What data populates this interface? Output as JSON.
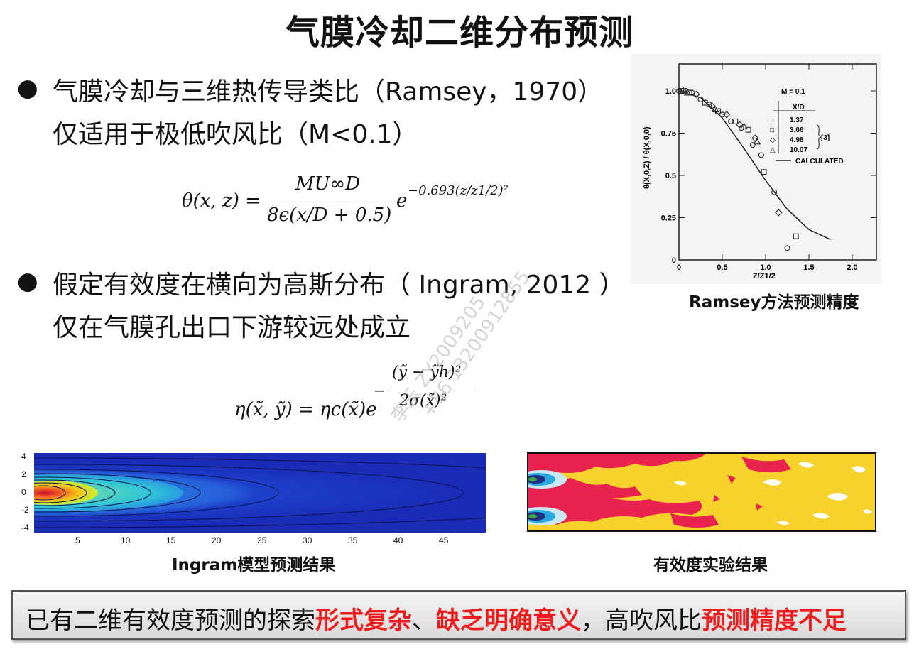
{
  "title": "气膜冷却二维分布预测",
  "bullet1": {
    "line1": "气膜冷却与三维热传导类比（Ramsey，1970）",
    "line2": "仅适用于极低吹风比（M<0.1）"
  },
  "formula1": {
    "lhs": "θ(x, z) =",
    "numerator": "MU∞D",
    "denominator": "8ϵ(x/D + 0.5)",
    "base": "e",
    "exponent": "−0.693(z/z1/2)²"
  },
  "bullet2": {
    "line1": "假定有效度在横向为高斯分布（ Ingram, 2012 ）",
    "line2": "仅在气膜孔出口下游较远处成立"
  },
  "formula2": {
    "lhs": "η(x̃, ỹ) = ηc(x̃)e",
    "exp_sign": "−",
    "exp_numerator": "(ỹ − ỹh)²",
    "exp_denominator": "2σ(x̃)²"
  },
  "ramsey_plot": {
    "caption": "Ramsey方法预测精度",
    "ylabel": "θ(X,0,Z) / θ(X,0,0)",
    "xlabel": "Z/Z1/2",
    "yticks": [
      "1.0",
      "0.75",
      "0.5",
      "0.25",
      "0"
    ],
    "xticks": [
      "0",
      "0.5",
      "1.0",
      "1.5",
      "2.0"
    ],
    "legend_title": "M = 0.1",
    "legend_header": "X/D",
    "legend_entries": [
      {
        "symbol": "○",
        "label": "1.37"
      },
      {
        "symbol": "□",
        "label": "3.06"
      },
      {
        "symbol": "◇",
        "label": "4.98"
      },
      {
        "symbol": "△",
        "label": "10.07"
      }
    ],
    "legend_ref": "[3]",
    "legend_calculated": "CALCULATED"
  },
  "chart_data": {
    "type": "scatter",
    "xlabel": "Z/Z1/2",
    "ylabel": "θ(X,0,Z) / θ(X,0,0)",
    "xlim": [
      0,
      2.2
    ],
    "ylim": [
      0,
      1.1
    ],
    "legend_title": "M = 0.1",
    "series": [
      {
        "name": "1.37",
        "marker": "circle",
        "x": [
          0.0,
          0.08,
          0.15,
          0.25,
          0.35,
          0.5,
          0.6,
          0.72,
          0.85,
          0.95,
          1.1,
          1.25
        ],
        "y": [
          1.0,
          1.0,
          0.99,
          0.95,
          0.92,
          0.86,
          0.82,
          0.78,
          0.68,
          0.62,
          0.4,
          0.07
        ]
      },
      {
        "name": "3.06",
        "marker": "square",
        "x": [
          0.02,
          0.12,
          0.3,
          0.45,
          0.65,
          0.8,
          0.98,
          1.35
        ],
        "y": [
          1.0,
          0.99,
          0.93,
          0.88,
          0.82,
          0.77,
          0.52,
          0.14
        ]
      },
      {
        "name": "4.98",
        "marker": "diamond",
        "x": [
          0.05,
          0.2,
          0.38,
          0.55,
          0.7,
          0.88,
          1.15
        ],
        "y": [
          1.0,
          0.98,
          0.91,
          0.86,
          0.8,
          0.72,
          0.28
        ]
      },
      {
        "name": "10.07",
        "marker": "triangle",
        "x": [
          0.1,
          0.42,
          0.75,
          0.9
        ],
        "y": [
          0.99,
          0.89,
          0.79,
          0.7
        ]
      },
      {
        "name": "CALCULATED",
        "marker": "line",
        "x": [
          0,
          0.25,
          0.5,
          0.75,
          1.0,
          1.25,
          1.5,
          1.75
        ],
        "y": [
          1.0,
          0.96,
          0.84,
          0.66,
          0.47,
          0.3,
          0.18,
          0.12
        ]
      }
    ]
  },
  "ingram_plot": {
    "caption": "Ingram模型预测结果",
    "yticks": [
      "4",
      "2",
      "0",
      "-2",
      "-4"
    ],
    "xticks": [
      "5",
      "10",
      "15",
      "20",
      "25",
      "30",
      "35",
      "40",
      "45"
    ],
    "colors": {
      "background": "#1a2bb5",
      "core": "#d42020",
      "mid": "#2ec4d8"
    }
  },
  "experiment_plot": {
    "caption": "有效度实验结果",
    "colors": {
      "yellow": "#f6d22c",
      "red": "#e8234e",
      "white": "#ffffff"
    }
  },
  "watermark": {
    "line1": "李乐 ZY2009205",
    "line2": "+86 13200912855"
  },
  "bottom": {
    "part1": "已有二维有效度预测的探索",
    "red1": "形式复杂",
    "sep1": "、",
    "red2": "缺乏明确意义",
    "part2": "，高吹风比",
    "red3": "预测精度不足"
  }
}
